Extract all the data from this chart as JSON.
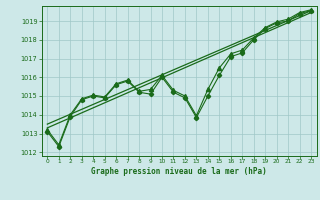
{
  "title": "Graphe pression niveau de la mer (hPa)",
  "bg_color": "#cde8e8",
  "plot_bg_color": "#cde8e8",
  "grid_color": "#a0c8c8",
  "line_color": "#1a6b1a",
  "text_color": "#1a6b1a",
  "xlim": [
    -0.5,
    23.5
  ],
  "ylim": [
    1011.8,
    1019.8
  ],
  "yticks": [
    1012,
    1013,
    1014,
    1015,
    1016,
    1017,
    1018,
    1019
  ],
  "xticks": [
    0,
    1,
    2,
    3,
    4,
    5,
    6,
    7,
    8,
    9,
    10,
    11,
    12,
    13,
    14,
    15,
    16,
    17,
    18,
    19,
    20,
    21,
    22,
    23
  ],
  "series_jagged": {
    "x": [
      0,
      1,
      2,
      3,
      4,
      5,
      6,
      7,
      8,
      9,
      10,
      11,
      12,
      13,
      14,
      15,
      16,
      17,
      18,
      19,
      20,
      21,
      22,
      23
    ],
    "y": [
      1013.1,
      1012.3,
      1013.9,
      1014.8,
      1015.0,
      1014.9,
      1015.6,
      1015.8,
      1015.2,
      1015.1,
      1016.0,
      1015.2,
      1014.9,
      1013.85,
      1015.0,
      1016.1,
      1017.1,
      1017.3,
      1018.0,
      1018.6,
      1018.9,
      1019.0,
      1019.4,
      1019.55
    ]
  },
  "series_smooth": {
    "x": [
      0,
      1,
      2,
      3,
      4,
      5,
      6,
      7,
      8,
      9,
      10,
      11,
      12,
      13,
      14,
      15,
      16,
      17,
      18,
      19,
      20,
      21,
      22,
      23
    ],
    "y": [
      1013.2,
      1012.4,
      1014.0,
      1014.85,
      1015.05,
      1014.95,
      1015.65,
      1015.85,
      1015.25,
      1015.35,
      1016.1,
      1015.3,
      1015.0,
      1013.95,
      1015.35,
      1016.5,
      1017.25,
      1017.45,
      1018.1,
      1018.65,
      1018.95,
      1019.1,
      1019.45,
      1019.6
    ]
  },
  "trend1": [
    1013.3,
    1019.45
  ],
  "trend2": [
    1013.5,
    1019.55
  ]
}
